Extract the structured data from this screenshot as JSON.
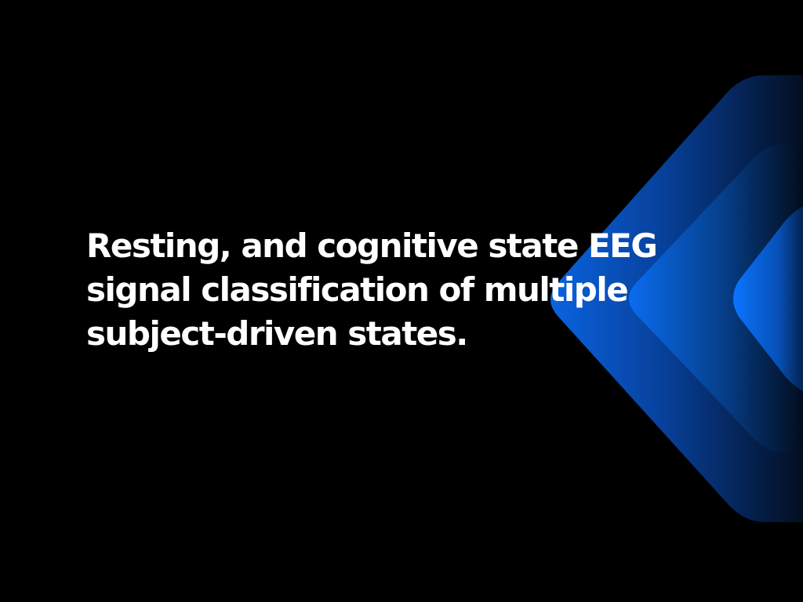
{
  "slide": {
    "title": "Resting, and cognitive state EEG signal classification of multiple subject-driven states.",
    "background_color": "#000000",
    "text_color": "#ffffff",
    "accent_colors": [
      "#0a6cf0",
      "#0a3a8c",
      "#020814"
    ]
  }
}
